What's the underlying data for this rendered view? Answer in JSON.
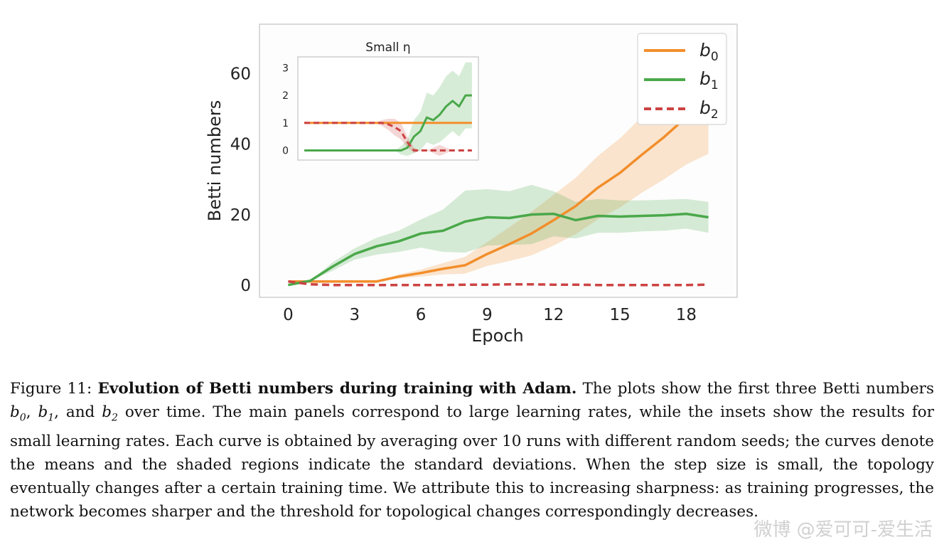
{
  "chart_data": [
    {
      "type": "line",
      "xlabel": "Epoch",
      "ylabel": "Betti numbers",
      "xlim": [
        -1.3,
        20.3
      ],
      "ylim": [
        -3.5,
        74
      ],
      "xticks": [
        0,
        3,
        6,
        9,
        12,
        15,
        18
      ],
      "yticks": [
        0,
        20,
        40,
        60
      ],
      "grid": false,
      "legend": "top-right",
      "x": [
        0,
        1,
        2,
        3,
        4,
        5,
        6,
        7,
        8,
        9,
        10,
        11,
        12,
        13,
        14,
        15,
        16,
        17,
        18,
        19
      ],
      "series": [
        {
          "name": "b0",
          "color": "#f28e2b",
          "dashed": false,
          "values": [
            1,
            1,
            1,
            1,
            1,
            2.4,
            3.4,
            4.6,
            5.6,
            8.8,
            11.6,
            14.6,
            18.4,
            22.4,
            27.6,
            31.8,
            37,
            42,
            47.6,
            53.6
          ],
          "std": [
            0,
            0,
            0,
            0,
            0,
            0.6,
            1,
            1.6,
            2.4,
            3.4,
            4.8,
            6.2,
            7.2,
            8,
            9,
            9.8,
            10.8,
            12,
            13.4,
            16.4
          ]
        },
        {
          "name": "b1",
          "color": "#4aa84a",
          "dashed": false,
          "values": [
            0,
            1.2,
            5.2,
            8.8,
            11,
            12.4,
            14.6,
            15.4,
            18,
            19.2,
            19,
            20,
            20.2,
            18.4,
            19.6,
            19.4,
            19.6,
            19.8,
            20.2,
            19.2
          ],
          "std": [
            0,
            0,
            1.2,
            1.6,
            2.4,
            3,
            4,
            6,
            8.8,
            8,
            7.6,
            8.4,
            6.4,
            5.2,
            4.8,
            4.6,
            4.4,
            4.4,
            4.2,
            4.4
          ]
        },
        {
          "name": "b2",
          "color": "#cc4343",
          "dashed": true,
          "values": [
            1,
            0.2,
            0,
            0,
            0,
            0,
            0,
            0,
            0.1,
            0.1,
            0.2,
            0.2,
            0.1,
            0.1,
            0,
            0,
            0,
            0,
            0,
            0.1
          ],
          "std": [
            0,
            0,
            0,
            0,
            0,
            0,
            0,
            0,
            0,
            0,
            0,
            0,
            0,
            0,
            0,
            0,
            0,
            0,
            0,
            0
          ]
        }
      ]
    },
    {
      "type": "line",
      "title": "Small η",
      "xlim": [
        -1,
        27
      ],
      "ylim": [
        -0.35,
        3.4
      ],
      "yticks": [
        0,
        1,
        2,
        3
      ],
      "grid": false,
      "x": [
        0,
        1,
        2,
        3,
        4,
        5,
        6,
        7,
        8,
        9,
        10,
        11,
        12,
        13,
        14,
        15,
        16,
        17,
        18,
        19,
        20,
        21,
        22,
        23,
        24,
        25,
        26
      ],
      "series": [
        {
          "name": "b0",
          "color": "#f28e2b",
          "dashed": false,
          "values": [
            1,
            1,
            1,
            1,
            1,
            1,
            1,
            1,
            1,
            1,
            1,
            1,
            1,
            1,
            1,
            1,
            1,
            1,
            1,
            1,
            1,
            1,
            1,
            1,
            1,
            1,
            1
          ],
          "std": [
            0,
            0,
            0,
            0,
            0,
            0,
            0,
            0,
            0,
            0,
            0,
            0,
            0,
            0,
            0,
            0,
            0,
            0,
            0,
            0,
            0,
            0,
            0,
            0,
            0,
            0,
            0
          ]
        },
        {
          "name": "b1",
          "color": "#4aa84a",
          "dashed": false,
          "values": [
            0,
            0,
            0,
            0,
            0,
            0,
            0,
            0,
            0,
            0,
            0,
            0,
            0,
            0,
            0,
            0,
            0.1,
            0.5,
            0.7,
            1.2,
            1.1,
            1.3,
            1.6,
            1.8,
            1.6,
            2,
            2
          ],
          "std": [
            0,
            0,
            0,
            0,
            0,
            0,
            0,
            0,
            0,
            0,
            0,
            0,
            0,
            0,
            0,
            0.15,
            0.3,
            0.6,
            0.7,
            0.9,
            0.9,
            1,
            1.1,
            1.1,
            1.1,
            1.2,
            1.2
          ]
        },
        {
          "name": "b2",
          "color": "#cc4343",
          "dashed": true,
          "values": [
            1,
            1,
            1,
            1,
            1,
            1,
            1,
            1,
            1,
            1,
            1,
            1,
            1,
            0.95,
            0.85,
            0.7,
            0.3,
            0,
            0,
            0,
            0,
            0,
            0,
            0,
            0,
            0,
            0
          ],
          "std": [
            0,
            0,
            0,
            0,
            0,
            0,
            0,
            0,
            0,
            0,
            0,
            0,
            0.1,
            0.2,
            0.3,
            0.3,
            0.2,
            0.1,
            0,
            0,
            0.1,
            0.2,
            0.1,
            0,
            0,
            0,
            0
          ]
        }
      ]
    }
  ],
  "caption": {
    "label": "Figure 11:",
    "title": "Evolution of Betti numbers during training with Adam.",
    "body_1": "The plots show the first three Betti numbers",
    "body_2": "over time. The main panels correspond to large learning rates, while the insets show the results for small learning rates. Each curve is obtained by averaging over 10 runs with different random seeds; the curves denote the means and the shaded regions indicate the standard deviations. When the step size is small, the topology eventually changes after a certain training time. We attribute this to increasing sharpness: as training progresses, the network becomes sharper and the threshold for topological changes correspondingly decreases.",
    "var_b": "b",
    "sub_0": "0",
    "sub_1": "1",
    "sub_2": "2",
    "sep_1": ", ",
    "sep_2": ", and "
  },
  "watermark": "微博 @爱可可-爱生活"
}
